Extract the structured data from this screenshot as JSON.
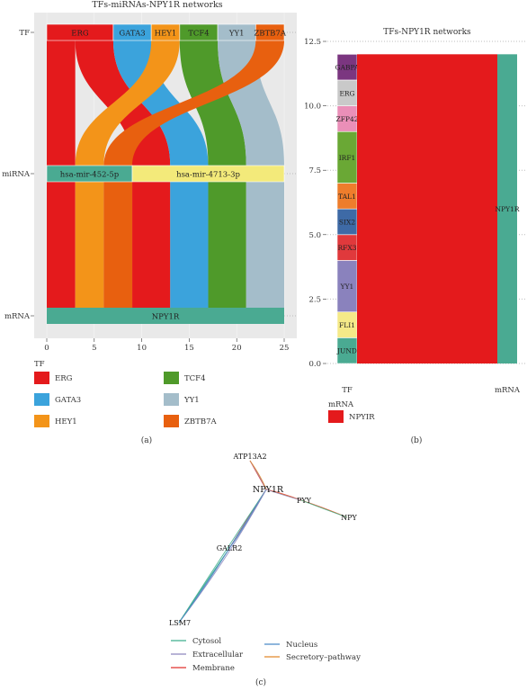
{
  "colors": {
    "ERG": "#e41a1c",
    "GATA3": "#3ba3dc",
    "HEY1": "#f39419",
    "TCF4": "#4f9a2a",
    "YY1": "#a4bdca",
    "ZBTB7A": "#e8600f",
    "mirna_452": "#4aaa92",
    "mirna_4713": "#f3ea7a",
    "npy1r": "#4aaa92",
    "GABPA": "#7b3680",
    "ZFP42": "#ea8fb8",
    "IRF1": "#6aa835",
    "TAL1": "#ee7d2c",
    "SIX2": "#3e6aa6",
    "RFX3": "#e0393c",
    "FLI1": "#f5ea88",
    "JUND": "#4aaa92",
    "ERG_b": "#c9c9c9",
    "YY1_b": "#8a82bd",
    "edge_cytosol": "#3fae8e",
    "edge_extracellular": "#8d86bd",
    "edge_membrane": "#e0302c",
    "edge_nucleus": "#4b8ac7",
    "edge_secretory": "#e2892b"
  },
  "chart_data": [
    {
      "type": "alluvial",
      "title": "TFs-miRNAs-NPY1R networks",
      "axes": [
        "TF",
        "miRNA",
        "mRNA"
      ],
      "stages": {
        "TF": [
          "ERG",
          "GATA3",
          "HEY1",
          "TCF4",
          "YY1",
          "ZBTB7A"
        ],
        "miRNA": [
          "hsa-mir-452-5p",
          "hsa-mir-4713-3p"
        ],
        "mRNA": [
          "NPY1R"
        ]
      },
      "flows": [
        {
          "tf": "ERG",
          "mirna": "hsa-mir-452-5p",
          "value": 3
        },
        {
          "tf": "ERG",
          "mirna": "hsa-mir-4713-3p",
          "value": 4
        },
        {
          "tf": "GATA3",
          "mirna": "hsa-mir-4713-3p",
          "value": 4
        },
        {
          "tf": "HEY1",
          "mirna": "hsa-mir-452-5p",
          "value": 3
        },
        {
          "tf": "TCF4",
          "mirna": "hsa-mir-4713-3p",
          "value": 4
        },
        {
          "tf": "YY1",
          "mirna": "hsa-mir-4713-3p",
          "value": 4
        },
        {
          "tf": "ZBTB7A",
          "mirna": "hsa-mir-452-5p",
          "value": 3
        }
      ],
      "x_ticks": [
        0,
        5,
        10,
        15,
        20,
        25
      ],
      "xlim": [
        0,
        25
      ],
      "legend": {
        "title": "TF",
        "items": [
          "ERG",
          "GATA3",
          "HEY1",
          "TCF4",
          "YY1",
          "ZBTB7A"
        ]
      },
      "caption": "(a)"
    },
    {
      "type": "stacked_bar",
      "title": "TFs-NPY1R networks",
      "categories": [
        "TF",
        "mRNA"
      ],
      "tf_segments": [
        {
          "name": "JUND",
          "value": 1
        },
        {
          "name": "FLI1",
          "value": 1
        },
        {
          "name": "YY1",
          "value": 2
        },
        {
          "name": "RFX3",
          "value": 1
        },
        {
          "name": "SIX2",
          "value": 1
        },
        {
          "name": "TAL1",
          "value": 1
        },
        {
          "name": "IRF1",
          "value": 2
        },
        {
          "name": "ZFP42",
          "value": 1
        },
        {
          "name": "ERG",
          "value": 1
        },
        {
          "name": "GABPA",
          "value": 1
        }
      ],
      "mrna_label": "NPY1R",
      "mrna_value": 12,
      "y_ticks": [
        "0.0",
        "2.5",
        "5.0",
        "7.5",
        "10.0",
        "12.5"
      ],
      "ylim": [
        0,
        12.5
      ],
      "legend": {
        "title": "mRNA",
        "items": [
          "NPYIR"
        ]
      },
      "caption": "(b)"
    },
    {
      "type": "network",
      "nodes": [
        "ATP13A2",
        "NPY1R",
        "PYY",
        "NPY",
        "GALR2",
        "LSM7"
      ],
      "center": "NPY1R",
      "legend": [
        "Cytosol",
        "Extracellular",
        "Membrane",
        "Nucleus",
        "Secretory–pathway"
      ],
      "caption": "(c)"
    }
  ]
}
